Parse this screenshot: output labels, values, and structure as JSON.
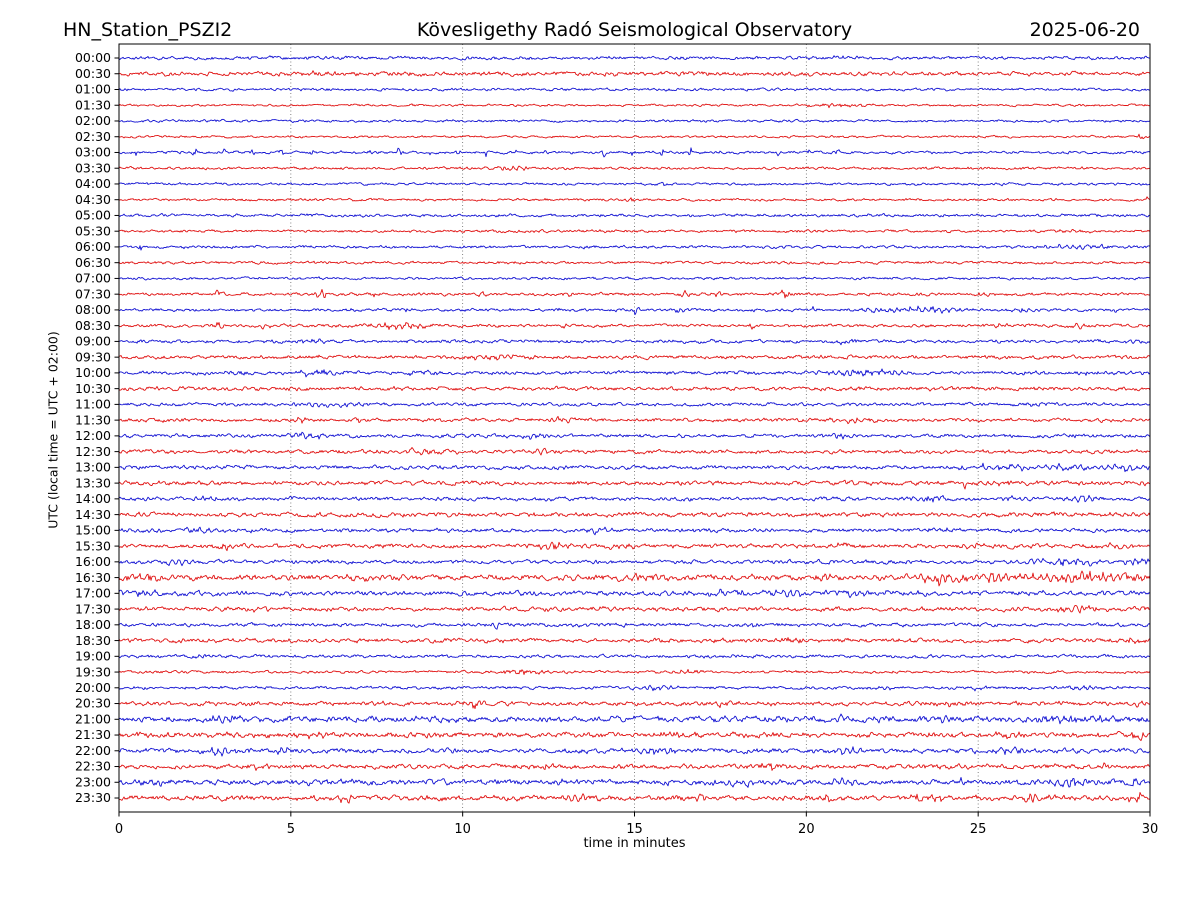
{
  "header": {
    "station": "HN_Station_PSZI2",
    "observatory": "Kövesligethy Radó Seismological Observatory",
    "date": "2025-06-20"
  },
  "axes": {
    "xlabel": "time in minutes",
    "ylabel": "UTC (local time = UTC + 02:00)",
    "x_ticks": [
      0,
      5,
      10,
      15,
      20,
      25,
      30
    ],
    "x_gridlines": [
      5,
      10,
      15,
      20,
      25
    ],
    "x_range": [
      0,
      30
    ]
  },
  "colors": {
    "trace_blue": "#1212d2",
    "trace_red": "#e01212",
    "grid": "#666666",
    "frame": "#000000",
    "text": "#000000"
  },
  "chart_data": {
    "type": "line",
    "subtype": "helicorder-dayplot",
    "station": "HN_Station_PSZI2",
    "title": "Kövesligethy Radó Seismological Observatory",
    "date": "2025-06-20",
    "minutes_per_row": 30,
    "row_interval_minutes": 30,
    "xlabel": "time in minutes",
    "ylabel": "UTC (local time = UTC + 02:00)",
    "grid": "vertical-dotted",
    "legend": "none",
    "rows": [
      {
        "label": "00:00",
        "color": "blue",
        "noise": 1.1,
        "events": [
          [
            5.5,
            1.0,
            0.5
          ],
          [
            13.5,
            1.1,
            0.4
          ],
          [
            21.0,
            1.0,
            0.6
          ]
        ]
      },
      {
        "label": "00:30",
        "color": "red",
        "noise": 1.4,
        "events": [
          [
            5.7,
            2.2,
            0.25
          ],
          [
            8.3,
            1.2,
            0.5
          ]
        ]
      },
      {
        "label": "01:00",
        "color": "blue",
        "noise": 0.9,
        "events": []
      },
      {
        "label": "01:30",
        "color": "red",
        "noise": 0.75,
        "events": [
          [
            20.9,
            1.8,
            0.9
          ]
        ]
      },
      {
        "label": "02:00",
        "color": "blue",
        "noise": 0.85,
        "events": []
      },
      {
        "label": "02:30",
        "color": "red",
        "noise": 0.75,
        "events": [
          [
            29.75,
            3.2,
            0.1
          ]
        ]
      },
      {
        "label": "03:00",
        "color": "blue",
        "noise": 0.9,
        "events": [],
        "pulses": {
          "from": 0.5,
          "to": 20.9,
          "step": 0.85,
          "amp": 4.0
        }
      },
      {
        "label": "03:30",
        "color": "red",
        "noise": 0.9,
        "events": [
          [
            11.3,
            2.3,
            0.6
          ]
        ]
      },
      {
        "label": "04:00",
        "color": "blue",
        "noise": 0.85,
        "events": [
          [
            15.9,
            2.0,
            0.2
          ],
          [
            25.3,
            1.3,
            0.4
          ]
        ]
      },
      {
        "label": "04:30",
        "color": "red",
        "noise": 0.85,
        "events": [
          [
            14.9,
            1.8,
            0.25
          ],
          [
            29.9,
            2.2,
            0.15
          ]
        ]
      },
      {
        "label": "05:00",
        "color": "blue",
        "noise": 1.0,
        "events": []
      },
      {
        "label": "05:30",
        "color": "red",
        "noise": 0.9,
        "events": [
          [
            27.6,
            1.3,
            0.6
          ]
        ]
      },
      {
        "label": "06:00",
        "color": "blue",
        "noise": 0.95,
        "events": [
          [
            0.65,
            3.2,
            0.1
          ],
          [
            27.8,
            1.6,
            1.4
          ]
        ]
      },
      {
        "label": "06:30",
        "color": "red",
        "noise": 0.9,
        "events": []
      },
      {
        "label": "07:00",
        "color": "blue",
        "noise": 0.85,
        "events": []
      },
      {
        "label": "07:30",
        "color": "red",
        "noise": 1.0,
        "events": [
          [
            2.9,
            2.8,
            0.15
          ],
          [
            5.9,
            3.2,
            0.18
          ],
          [
            7.4,
            2.2,
            0.15
          ],
          [
            10.6,
            2.8,
            0.12
          ],
          [
            13.1,
            3.2,
            0.15
          ],
          [
            16.4,
            2.8,
            0.18
          ],
          [
            17.4,
            2.3,
            0.15
          ],
          [
            19.4,
            3.8,
            0.18
          ],
          [
            25.1,
            1.4,
            0.3
          ]
        ]
      },
      {
        "label": "08:00",
        "color": "blue",
        "noise": 0.95,
        "events": [
          [
            6.8,
            1.8,
            0.15
          ],
          [
            8.4,
            1.6,
            0.12
          ],
          [
            12.8,
            1.8,
            0.12
          ],
          [
            15.0,
            3.2,
            0.2
          ],
          [
            16.3,
            1.8,
            0.3
          ],
          [
            18.6,
            2.0,
            0.15
          ],
          [
            20.2,
            1.8,
            0.12
          ],
          [
            23.2,
            2.4,
            1.6
          ],
          [
            26.3,
            1.5,
            0.5
          ],
          [
            29.0,
            1.5,
            0.3
          ]
        ]
      },
      {
        "label": "08:30",
        "color": "red",
        "noise": 1.05,
        "events": [
          [
            2.9,
            2.8,
            0.2
          ],
          [
            4.2,
            2.3,
            0.2
          ],
          [
            8.3,
            2.6,
            1.1
          ],
          [
            13.0,
            1.5,
            0.2
          ],
          [
            18.4,
            1.9,
            0.15
          ],
          [
            25.6,
            1.4,
            0.2
          ],
          [
            28.1,
            1.9,
            0.5
          ]
        ]
      },
      {
        "label": "09:00",
        "color": "blue",
        "noise": 1.1,
        "events": [
          [
            5.5,
            2.2,
            0.5
          ],
          [
            21.1,
            2.0,
            0.4
          ],
          [
            26.2,
            1.4,
            0.5
          ],
          [
            29.5,
            1.8,
            0.4
          ]
        ]
      },
      {
        "label": "09:30",
        "color": "red",
        "noise": 1.2,
        "events": [
          [
            5.8,
            3.2,
            0.1
          ],
          [
            10.8,
            1.8,
            1.1
          ],
          [
            19.9,
            1.3,
            0.3
          ]
        ]
      },
      {
        "label": "10:00",
        "color": "blue",
        "noise": 1.2,
        "events": [
          [
            3.4,
            1.8,
            0.4
          ],
          [
            5.8,
            2.2,
            1.0
          ],
          [
            8.8,
            2.2,
            0.5
          ],
          [
            21.6,
            2.3,
            1.4
          ],
          [
            26.6,
            1.8,
            0.5
          ],
          [
            28.2,
            1.6,
            0.5
          ]
        ]
      },
      {
        "label": "10:30",
        "color": "red",
        "noise": 1.3,
        "events": [
          [
            24.0,
            1.3,
            0.5
          ]
        ]
      },
      {
        "label": "11:00",
        "color": "blue",
        "noise": 1.1,
        "events": [
          [
            5.9,
            1.9,
            0.8
          ],
          [
            6.9,
            1.8,
            0.5
          ],
          [
            21.1,
            1.7,
            0.5
          ],
          [
            26.9,
            1.7,
            0.4
          ]
        ]
      },
      {
        "label": "11:30",
        "color": "red",
        "noise": 1.2,
        "events": [
          [
            5.3,
            2.3,
            0.3
          ],
          [
            7.0,
            1.7,
            0.3
          ],
          [
            12.9,
            1.9,
            0.3
          ],
          [
            21.4,
            2.3,
            0.8
          ]
        ]
      },
      {
        "label": "12:00",
        "color": "blue",
        "noise": 1.2,
        "events": [
          [
            5.5,
            2.8,
            0.5
          ],
          [
            12.1,
            2.3,
            0.4
          ],
          [
            20.9,
            2.3,
            0.5
          ],
          [
            28.1,
            1.4,
            0.4
          ]
        ]
      },
      {
        "label": "12:30",
        "color": "red",
        "noise": 1.3,
        "events": [
          [
            9.1,
            1.9,
            1.4
          ],
          [
            12.3,
            2.7,
            0.3
          ]
        ]
      },
      {
        "label": "13:00",
        "color": "blue",
        "noise": 1.3,
        "events": [
          [
            25.6,
            2.3,
            1.2
          ],
          [
            27.6,
            2.3,
            1.4
          ],
          [
            29.2,
            2.3,
            0.7
          ]
        ]
      },
      {
        "label": "13:30",
        "color": "red",
        "noise": 1.4,
        "events": [
          [
            24.6,
            3.2,
            0.1
          ],
          [
            25.9,
            2.0,
            0.8
          ],
          [
            29.8,
            2.2,
            0.2
          ]
        ]
      },
      {
        "label": "14:00",
        "color": "blue",
        "noise": 1.3,
        "events": [
          [
            2.6,
            1.8,
            0.5
          ],
          [
            23.6,
            2.0,
            0.6
          ],
          [
            26.1,
            1.8,
            0.4
          ],
          [
            28.1,
            2.0,
            0.5
          ]
        ]
      },
      {
        "label": "14:30",
        "color": "red",
        "noise": 1.5,
        "events": []
      },
      {
        "label": "15:00",
        "color": "blue",
        "noise": 1.3,
        "events": [
          [
            0.9,
            2.0,
            0.5
          ],
          [
            2.3,
            2.0,
            0.5
          ],
          [
            13.9,
            2.3,
            0.3
          ],
          [
            23.6,
            1.8,
            0.6
          ]
        ]
      },
      {
        "label": "15:30",
        "color": "red",
        "noise": 1.4,
        "events": [
          [
            3.1,
            2.3,
            0.4
          ],
          [
            12.6,
            2.7,
            0.6
          ],
          [
            14.6,
            1.8,
            0.4
          ],
          [
            21.1,
            2.0,
            0.5
          ],
          [
            24.6,
            2.7,
            0.5
          ],
          [
            29.1,
            1.8,
            0.4
          ]
        ]
      },
      {
        "label": "16:00",
        "color": "blue",
        "noise": 1.3,
        "events": [
          [
            1.6,
            2.3,
            0.5
          ],
          [
            27.6,
            2.7,
            1.2
          ],
          [
            29.6,
            2.7,
            0.4
          ]
        ]
      },
      {
        "label": "16:30",
        "color": "red",
        "noise": 1.9,
        "events": [
          [
            0.6,
            3.2,
            0.8
          ],
          [
            7.1,
            1.8,
            0.5
          ],
          [
            15.6,
            2.3,
            0.6
          ],
          [
            20.6,
            2.3,
            0.5
          ],
          [
            23.9,
            4.2,
            0.8
          ],
          [
            25.6,
            3.2,
            1.0
          ],
          [
            27.9,
            4.2,
            1.2
          ],
          [
            29.4,
            3.6,
            0.7
          ]
        ]
      },
      {
        "label": "17:00",
        "color": "blue",
        "noise": 1.6,
        "events": [
          [
            0.6,
            2.6,
            0.6
          ],
          [
            17.6,
            2.0,
            0.8
          ],
          [
            19.6,
            2.3,
            1.0
          ],
          [
            21.6,
            2.3,
            0.8
          ]
        ]
      },
      {
        "label": "17:30",
        "color": "red",
        "noise": 1.4,
        "events": [
          [
            4.1,
            1.8,
            0.4
          ],
          [
            13.9,
            2.0,
            0.4
          ],
          [
            27.9,
            3.2,
            0.8
          ]
        ]
      },
      {
        "label": "18:00",
        "color": "blue",
        "noise": 1.2,
        "events": [
          [
            11.0,
            3.2,
            0.12
          ],
          [
            13.3,
            1.8,
            0.3
          ],
          [
            18.4,
            1.6,
            0.3
          ]
        ]
      },
      {
        "label": "18:30",
        "color": "red",
        "noise": 1.4,
        "events": [
          [
            19.6,
            1.8,
            0.4
          ],
          [
            29.6,
            2.2,
            0.4
          ]
        ]
      },
      {
        "label": "19:00",
        "color": "blue",
        "noise": 1.1,
        "events": [
          [
            2.6,
            1.6,
            0.4
          ]
        ]
      },
      {
        "label": "19:30",
        "color": "red",
        "noise": 0.9,
        "events": [
          [
            11.6,
            2.0,
            0.9
          ],
          [
            16.6,
            2.0,
            0.5
          ]
        ]
      },
      {
        "label": "20:00",
        "color": "blue",
        "noise": 1.0,
        "events": [
          [
            15.6,
            1.6,
            0.8
          ],
          [
            22.1,
            1.6,
            0.5
          ],
          [
            25.1,
            1.4,
            0.4
          ],
          [
            28.1,
            1.6,
            0.6
          ]
        ]
      },
      {
        "label": "20:30",
        "color": "red",
        "noise": 1.4,
        "events": [
          [
            10.4,
            2.7,
            0.5
          ],
          [
            17.6,
            1.8,
            0.5
          ],
          [
            24.1,
            2.0,
            0.6
          ],
          [
            27.1,
            2.3,
            0.5
          ],
          [
            29.7,
            2.7,
            0.3
          ]
        ]
      },
      {
        "label": "21:00",
        "color": "blue",
        "noise": 2.0,
        "events": [
          [
            2.9,
            2.7,
            0.5
          ],
          [
            21.1,
            2.3,
            0.6
          ],
          [
            24.1,
            2.3,
            0.5
          ],
          [
            27.4,
            3.6,
            0.6
          ],
          [
            28.6,
            3.2,
            0.5
          ]
        ]
      },
      {
        "label": "21:30",
        "color": "red",
        "noise": 1.8,
        "events": [
          [
            5.6,
            2.3,
            0.5
          ],
          [
            16.1,
            2.3,
            0.5
          ],
          [
            21.6,
            2.7,
            0.6
          ],
          [
            26.1,
            2.3,
            0.5
          ],
          [
            29.7,
            3.2,
            0.3
          ]
        ]
      },
      {
        "label": "22:00",
        "color": "blue",
        "noise": 1.6,
        "events": [
          [
            2.9,
            3.2,
            0.6
          ],
          [
            4.6,
            2.3,
            0.4
          ],
          [
            15.6,
            2.3,
            0.6
          ],
          [
            21.1,
            2.7,
            0.6
          ],
          [
            25.9,
            2.3,
            0.5
          ]
        ]
      },
      {
        "label": "22:30",
        "color": "red",
        "noise": 1.5,
        "events": [
          [
            4.1,
            2.3,
            0.3
          ],
          [
            12.6,
            2.0,
            0.5
          ],
          [
            18.9,
            2.3,
            0.5
          ],
          [
            24.1,
            2.3,
            0.6
          ],
          [
            28.6,
            1.8,
            0.4
          ]
        ]
      },
      {
        "label": "23:00",
        "color": "blue",
        "noise": 1.8,
        "events": [
          [
            0.9,
            2.7,
            0.5
          ],
          [
            6.1,
            2.3,
            0.5
          ],
          [
            13.1,
            2.3,
            0.5
          ],
          [
            17.9,
            2.7,
            0.6
          ],
          [
            21.1,
            2.3,
            0.5
          ],
          [
            24.6,
            2.7,
            0.5
          ],
          [
            27.6,
            3.2,
            0.6
          ],
          [
            29.5,
            3.2,
            0.3
          ]
        ]
      },
      {
        "label": "23:30",
        "color": "red",
        "noise": 1.7,
        "events": [
          [
            6.6,
            3.6,
            0.2
          ],
          [
            13.6,
            2.7,
            0.5
          ],
          [
            17.1,
            2.3,
            0.5
          ],
          [
            20.6,
            2.7,
            0.6
          ],
          [
            23.6,
            3.2,
            0.6
          ],
          [
            26.6,
            2.7,
            0.5
          ],
          [
            29.6,
            3.6,
            0.3
          ]
        ]
      }
    ]
  }
}
